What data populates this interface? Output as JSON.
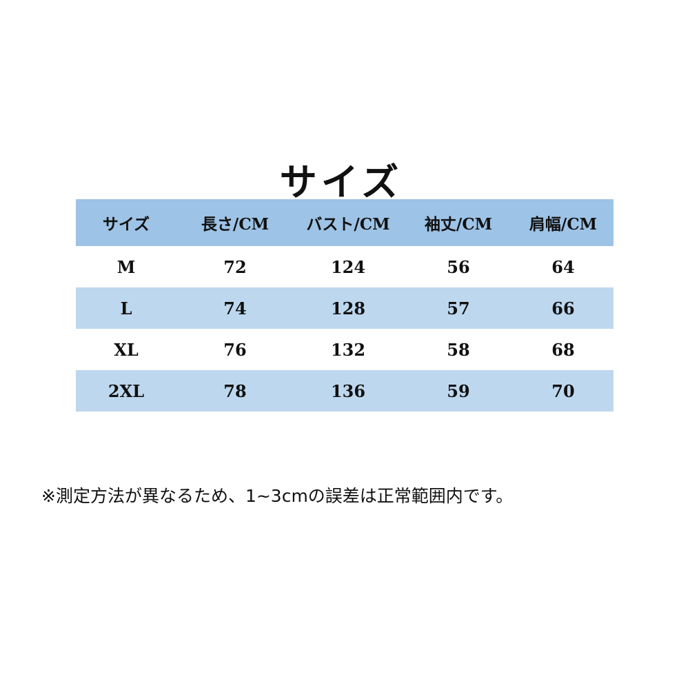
{
  "title": "サイズ",
  "table": {
    "headers": [
      "サイズ",
      "長さ/CM",
      "バスト/CM",
      "袖丈/CM",
      "肩幅/CM"
    ],
    "rows": [
      [
        "M",
        "72",
        "124",
        "56",
        "64"
      ],
      [
        "L",
        "74",
        "128",
        "57",
        "66"
      ],
      [
        "XL",
        "76",
        "132",
        "58",
        "68"
      ],
      [
        "2XL",
        "78",
        "136",
        "59",
        "70"
      ]
    ]
  },
  "note": "※測定方法が異なるため、1~3cmの誤差は正常範囲内です。",
  "colors": {
    "header_bg": "#9dc3e6",
    "band_bg": "#bdd7ee"
  }
}
